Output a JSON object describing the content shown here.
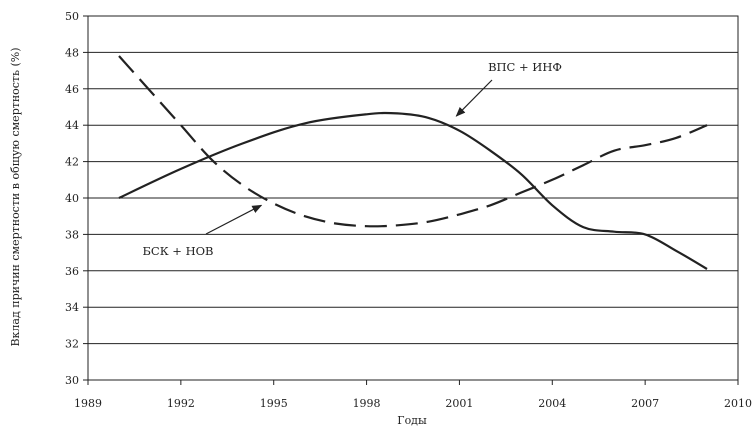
{
  "chart_data": {
    "type": "line",
    "xlabel": "Годы",
    "ylabel": "Вклад причин смертности в общую смертность (%)",
    "xlim": [
      1989,
      2010
    ],
    "ylim": [
      30,
      50
    ],
    "xticks": [
      "1989",
      "1992",
      "1995",
      "1998",
      "2001",
      "2004",
      "2007",
      "2010"
    ],
    "yticks": [
      "30",
      "32",
      "34",
      "36",
      "38",
      "40",
      "42",
      "44",
      "46",
      "48",
      "50"
    ],
    "grid": "horizontal",
    "series": [
      {
        "name": "ВПС + ИНФ",
        "style": "solid",
        "color": "#222222",
        "x": [
          1990,
          1992,
          1994,
          1996,
          1998,
          1999,
          2000,
          2001,
          2002,
          2003,
          2004,
          2005,
          2006,
          2007,
          2008,
          2009
        ],
        "y": [
          40.0,
          41.6,
          43.0,
          44.1,
          44.6,
          44.65,
          44.4,
          43.7,
          42.6,
          41.3,
          39.6,
          38.4,
          38.15,
          38.0,
          37.1,
          36.1
        ]
      },
      {
        "name": "БСК + НОВ",
        "style": "dashed",
        "color": "#222222",
        "x": [
          1990,
          1991,
          1992,
          1993,
          1994,
          1995,
          1996,
          1997,
          1998,
          1999,
          2000,
          2001,
          2002,
          2003,
          2004,
          2005,
          2006,
          2007,
          2008,
          2009
        ],
        "y": [
          47.8,
          45.9,
          44.0,
          42.1,
          40.7,
          39.7,
          39.0,
          38.6,
          38.45,
          38.5,
          38.7,
          39.1,
          39.6,
          40.3,
          41.0,
          41.8,
          42.6,
          42.9,
          43.3,
          44.0
        ]
      }
    ],
    "annotations": [
      {
        "text": "ВПС + ИНФ",
        "series": 0,
        "arrow_to": [
          2000.9,
          44.5
        ]
      },
      {
        "text": "БСК + НОВ",
        "series": 1,
        "arrow_to": [
          1994.6,
          39.6
        ]
      }
    ]
  }
}
